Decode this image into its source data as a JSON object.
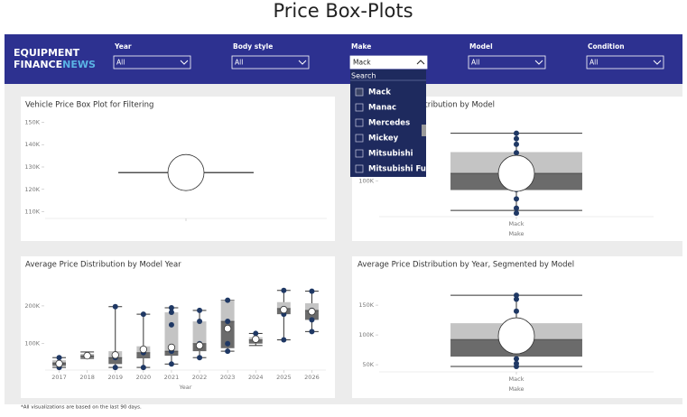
{
  "page_title": "Price Box-Plots",
  "logo": {
    "line1": "EQUIPMENT",
    "line2a": "FINANCE",
    "line2b": "NEWS"
  },
  "filters": [
    {
      "label": "Year",
      "value": "All"
    },
    {
      "label": "Body style",
      "value": "All"
    },
    {
      "label": "Make",
      "value": "Mack"
    },
    {
      "label": "Model",
      "value": "All"
    },
    {
      "label": "Condition",
      "value": "All"
    }
  ],
  "dropdown": {
    "search": "Search",
    "items": [
      {
        "label": "Mack",
        "checked": true
      },
      {
        "label": "Manac",
        "checked": false
      },
      {
        "label": "Mercedes",
        "checked": false
      },
      {
        "label": "Mickey",
        "checked": false
      },
      {
        "label": "Mitsubishi",
        "checked": false
      },
      {
        "label": "Mitsubishi Fuso",
        "checked": false
      }
    ]
  },
  "chart_data": [
    {
      "type": "box",
      "title": "Vehicle Price Box Plot for Filtering",
      "categories": [
        null
      ],
      "boxes": [
        {
          "low": 127500,
          "q1": 127500,
          "median": 127500,
          "q3": 127500,
          "high": 127500,
          "mean": 127500,
          "points": []
        }
      ],
      "ylim": [
        107000,
        153000
      ],
      "yticks": [
        {
          "value": 110000,
          "label": "110K"
        },
        {
          "value": 120000,
          "label": "120K"
        },
        {
          "value": 130000,
          "label": "130K"
        },
        {
          "value": 140000,
          "label": "140K"
        },
        {
          "value": 150000,
          "label": "150K"
        }
      ],
      "grid": false,
      "colors": {
        "upper": "#c4c4c4",
        "lower": "#6b6b6b",
        "points": "#1f3864"
      }
    },
    {
      "type": "box",
      "title": "Average Price Distribution by Model",
      "x_label": "Make",
      "categories": [
        "Mack"
      ],
      "boxes": [
        {
          "low": 58750,
          "q1": 87500,
          "median": 111000,
          "q3": 141000,
          "high": 167500,
          "mean": 111000,
          "points": [
            55000,
            62000,
            75000,
            88000,
            100000,
            125000,
            140000,
            152000,
            160000,
            167500
          ]
        }
      ],
      "ylim": [
        50000,
        190000
      ],
      "yticks": [
        {
          "value": 100000,
          "label": "100K"
        }
      ],
      "grid": false,
      "colors": {
        "upper": "#c4c4c4",
        "lower": "#6b6b6b",
        "points": "#1f3864"
      }
    },
    {
      "type": "box",
      "title": "Average Price Distribution by Model Year",
      "x_label": "Year",
      "categories": [
        "2017",
        "2018",
        "2019",
        "2020",
        "2021",
        "2022",
        "2023",
        "2024",
        "2025",
        "2026"
      ],
      "boxes": [
        {
          "low": 37000,
          "q1": 41000,
          "median": 49000,
          "q3": 56000,
          "high": 63000,
          "mean": 47000,
          "points": [
            37000,
            49000,
            63000
          ]
        },
        {
          "low": 61000,
          "q1": 63000,
          "median": 68000,
          "q3": 73000,
          "high": 78000,
          "mean": 68000,
          "points": [
            68000
          ]
        },
        {
          "low": 37000,
          "q1": 46000,
          "median": 63000,
          "q3": 80000,
          "high": 198000,
          "mean": 70000,
          "points": [
            37000,
            63000,
            198000
          ]
        },
        {
          "low": 37000,
          "q1": 61000,
          "median": 76000,
          "q3": 93000,
          "high": 178000,
          "mean": 85000,
          "points": [
            37000,
            76000,
            178000
          ]
        },
        {
          "low": 46000,
          "q1": 68000,
          "median": 80000,
          "q3": 183000,
          "high": 195000,
          "mean": 90000,
          "points": [
            46000,
            80000,
            150000,
            183000,
            195000
          ]
        },
        {
          "low": 63000,
          "q1": 80000,
          "median": 100000,
          "q3": 159000,
          "high": 188000,
          "mean": 95000,
          "points": [
            63000,
            100000,
            159000,
            188000
          ]
        },
        {
          "low": 80000,
          "q1": 88000,
          "median": 159000,
          "q3": 215000,
          "high": 215000,
          "mean": 140000,
          "points": [
            80000,
            100000,
            159000,
            215000
          ]
        },
        {
          "low": 95000,
          "q1": 100000,
          "median": 110000,
          "q3": 117000,
          "high": 127000,
          "mean": 112000,
          "points": [
            110000,
            127000
          ]
        },
        {
          "low": 110000,
          "q1": 178000,
          "median": 193000,
          "q3": 210000,
          "high": 241000,
          "mean": 190000,
          "points": [
            110000,
            178000,
            193000,
            241000
          ]
        },
        {
          "low": 132000,
          "q1": 163000,
          "median": 188000,
          "q3": 207000,
          "high": 239000,
          "mean": 185000,
          "points": [
            132000,
            163000,
            188000,
            239000
          ]
        }
      ],
      "ylim": [
        30000,
        250000
      ],
      "yticks": [
        {
          "value": 100000,
          "label": "100K"
        },
        {
          "value": 200000,
          "label": "200K"
        }
      ],
      "grid": false,
      "colors": {
        "upper": "#c4c4c4",
        "lower": "#6b6b6b",
        "points": "#1f3864"
      }
    },
    {
      "type": "box",
      "title": "Average Price Distribution by Year, Segmented by Model",
      "x_label": "Make",
      "categories": [
        "Mack"
      ],
      "boxes": [
        {
          "low": 47000,
          "q1": 63600,
          "median": 92400,
          "q3": 119700,
          "high": 166700,
          "mean": 98500,
          "points": [
            47000,
            52000,
            60000,
            92400,
            140000,
            160000,
            166700
          ]
        }
      ],
      "ylim": [
        38000,
        185000
      ],
      "yticks": [
        {
          "value": 50000,
          "label": "50K"
        },
        {
          "value": 100000,
          "label": "100K"
        },
        {
          "value": 150000,
          "label": "150K"
        }
      ],
      "grid": false,
      "colors": {
        "upper": "#c4c4c4",
        "lower": "#6b6b6b",
        "points": "#1f3864"
      }
    }
  ],
  "footnote": "*All visualizations are based on the last 90 days."
}
